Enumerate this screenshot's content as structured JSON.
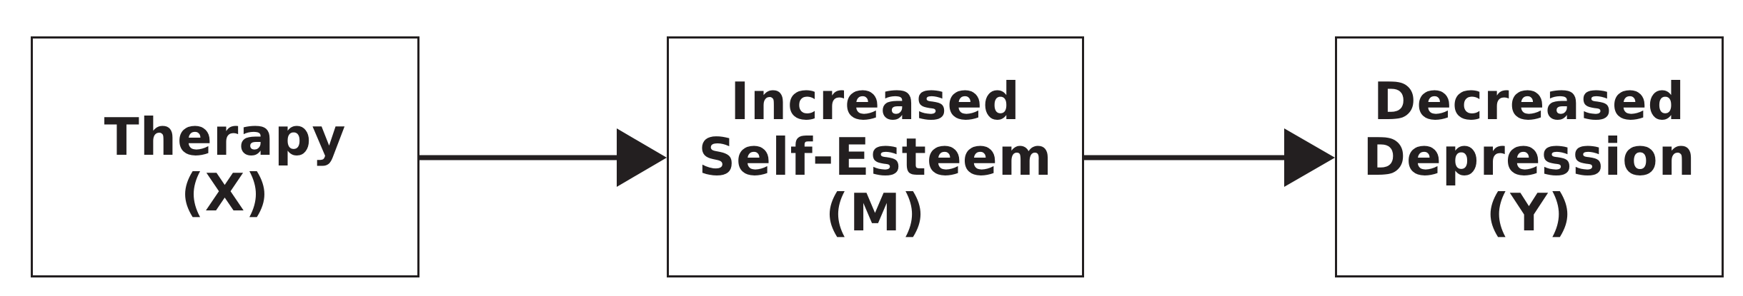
{
  "colors": {
    "stroke": "#231f20",
    "text": "#231f20",
    "background": "#ffffff"
  },
  "nodes": [
    {
      "lines": [
        "Therapy",
        "(X)"
      ]
    },
    {
      "lines": [
        "Increased",
        "Self-Esteem",
        "(M)"
      ]
    },
    {
      "lines": [
        "Decreased",
        "Depression",
        "(Y)"
      ]
    }
  ],
  "edges": [
    {
      "from": "Therapy (X)",
      "to": "Increased Self-Esteem (M)"
    },
    {
      "from": "Increased Self-Esteem (M)",
      "to": "Decreased Depression (Y)"
    }
  ]
}
